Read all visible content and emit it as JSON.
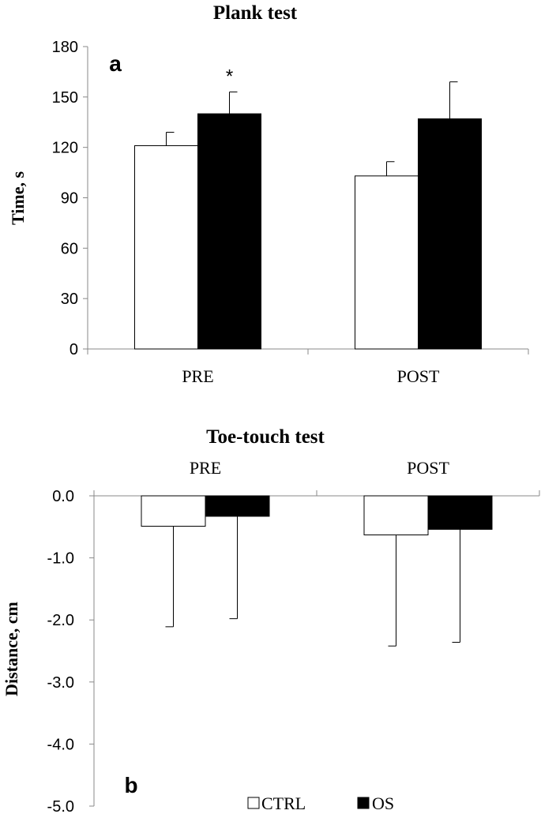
{
  "chart_data": [
    {
      "type": "bar",
      "panel_label": "a",
      "title": "Plank test",
      "ylabel": "Time, s",
      "ylim": [
        0,
        180
      ],
      "yticks": [
        "0",
        "30",
        "60",
        "90",
        "120",
        "150",
        "180"
      ],
      "categories": [
        "PRE",
        "POST"
      ],
      "series": [
        {
          "name": "CTRL",
          "color": "#ffffff",
          "values": [
            121,
            103
          ],
          "error": [
            8,
            8.5
          ]
        },
        {
          "name": "OS",
          "color": "#000000",
          "values": [
            140,
            137
          ],
          "error": [
            13,
            22
          ]
        }
      ],
      "annotations": [
        {
          "text": "*",
          "category": "PRE",
          "series": "OS"
        }
      ]
    },
    {
      "type": "bar",
      "panel_label": "b",
      "title": "Toe-touch test",
      "ylabel": "Distance, cm",
      "ylim": [
        -5.0,
        0.0
      ],
      "yticks": [
        "0.0",
        "-1.0",
        "-2.0",
        "-3.0",
        "-4.0",
        "-5.0"
      ],
      "categories": [
        "PRE",
        "POST"
      ],
      "series": [
        {
          "name": "CTRL",
          "color": "#ffffff",
          "values": [
            -0.49,
            -0.63
          ],
          "error": [
            1.62,
            1.79
          ]
        },
        {
          "name": "OS",
          "color": "#000000",
          "values": [
            -0.33,
            -0.54
          ],
          "error": [
            1.65,
            1.82
          ]
        }
      ]
    }
  ],
  "legend": {
    "placement": "bottom-center",
    "items": [
      "CTRL",
      "OS"
    ]
  }
}
